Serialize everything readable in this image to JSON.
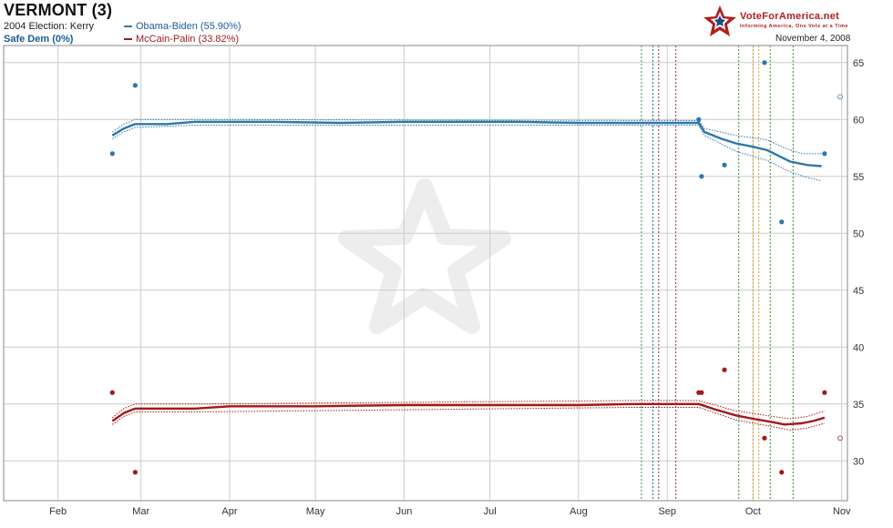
{
  "header": {
    "title": "VERMONT (3)",
    "previous_election": "2004 Election: Kerry",
    "rating": "Safe Dem (0%)",
    "date": "November 4, 2008"
  },
  "brand": {
    "name": "VoteForAmerica.net",
    "tagline": "Informing America, One Vote at a Time",
    "logo_icon": "star-logo-icon"
  },
  "colors": {
    "obama": "#2e77aa",
    "mccain": "#a11a1a",
    "grid": "#cccccc",
    "frame": "#888888"
  },
  "chart_data": {
    "type": "line",
    "x_axis_type": "date",
    "xlim": [
      "2008-01-13",
      "2008-11-03"
    ],
    "ylim": [
      26.5,
      66.5
    ],
    "grid": true,
    "y_ticks": [
      30,
      35,
      40,
      45,
      50,
      55,
      60,
      65
    ],
    "x_ticks": [
      {
        "date": "2008-02-01",
        "label": "Feb"
      },
      {
        "date": "2008-03-01",
        "label": "Mar"
      },
      {
        "date": "2008-04-01",
        "label": "Apr"
      },
      {
        "date": "2008-05-01",
        "label": "May"
      },
      {
        "date": "2008-06-01",
        "label": "Jun"
      },
      {
        "date": "2008-07-01",
        "label": "Jul"
      },
      {
        "date": "2008-08-01",
        "label": "Aug"
      },
      {
        "date": "2008-09-01",
        "label": "Sep"
      },
      {
        "date": "2008-10-01",
        "label": "Oct"
      },
      {
        "date": "2008-11-01",
        "label": "Nov"
      }
    ],
    "series": [
      {
        "name": "Obama-Biden (55.90%)",
        "color": "#2e77aa",
        "trend": [
          [
            "2008-02-20",
            58.6
          ],
          [
            "2008-02-24",
            59.2
          ],
          [
            "2008-02-28",
            59.6
          ],
          [
            "2008-03-10",
            59.6
          ],
          [
            "2008-03-20",
            59.8
          ],
          [
            "2008-04-15",
            59.8
          ],
          [
            "2008-05-10",
            59.7
          ],
          [
            "2008-06-01",
            59.8
          ],
          [
            "2008-07-10",
            59.8
          ],
          [
            "2008-08-01",
            59.7
          ],
          [
            "2008-09-12",
            59.7
          ],
          [
            "2008-09-14",
            58.9
          ],
          [
            "2008-09-20",
            58.3
          ],
          [
            "2008-09-25",
            57.9
          ],
          [
            "2008-10-01",
            57.6
          ],
          [
            "2008-10-06",
            57.3
          ],
          [
            "2008-10-10",
            56.8
          ],
          [
            "2008-10-14",
            56.3
          ],
          [
            "2008-10-20",
            56.0
          ],
          [
            "2008-10-25",
            55.9
          ]
        ],
        "upper": [
          [
            "2008-02-20",
            58.9
          ],
          [
            "2008-02-24",
            59.6
          ],
          [
            "2008-02-28",
            60.0
          ],
          [
            "2008-03-20",
            60.0
          ],
          [
            "2008-09-12",
            59.9
          ],
          [
            "2008-09-14",
            59.2
          ],
          [
            "2008-09-25",
            58.6
          ],
          [
            "2008-10-06",
            58.2
          ],
          [
            "2008-10-12",
            57.5
          ],
          [
            "2008-10-18",
            57.0
          ],
          [
            "2008-10-25",
            57.0
          ]
        ],
        "lower": [
          [
            "2008-02-20",
            58.3
          ],
          [
            "2008-02-24",
            58.9
          ],
          [
            "2008-02-28",
            59.3
          ],
          [
            "2008-03-20",
            59.5
          ],
          [
            "2008-09-12",
            59.5
          ],
          [
            "2008-09-14",
            58.6
          ],
          [
            "2008-09-25",
            57.2
          ],
          [
            "2008-10-06",
            56.4
          ],
          [
            "2008-10-14",
            55.4
          ],
          [
            "2008-10-20",
            54.9
          ],
          [
            "2008-10-25",
            54.6
          ]
        ],
        "polls": [
          [
            "2008-02-20",
            57
          ],
          [
            "2008-02-28",
            63
          ],
          [
            "2008-09-12",
            60
          ],
          [
            "2008-09-13",
            55
          ],
          [
            "2008-09-21",
            56
          ],
          [
            "2008-10-05",
            65
          ],
          [
            "2008-10-11",
            51
          ],
          [
            "2008-10-26",
            57
          ]
        ],
        "end_marker": 62
      },
      {
        "name": "McCain-Palin (33.82%)",
        "color": "#a11a1a",
        "trend": [
          [
            "2008-02-20",
            33.5
          ],
          [
            "2008-02-24",
            34.2
          ],
          [
            "2008-02-28",
            34.6
          ],
          [
            "2008-03-20",
            34.6
          ],
          [
            "2008-04-01",
            34.8
          ],
          [
            "2008-05-01",
            34.8
          ],
          [
            "2008-06-01",
            34.9
          ],
          [
            "2008-07-01",
            34.9
          ],
          [
            "2008-08-01",
            34.9
          ],
          [
            "2008-08-20",
            35.0
          ],
          [
            "2008-09-12",
            35.0
          ],
          [
            "2008-09-18",
            34.5
          ],
          [
            "2008-09-25",
            34.0
          ],
          [
            "2008-10-01",
            33.7
          ],
          [
            "2008-10-08",
            33.4
          ],
          [
            "2008-10-12",
            33.2
          ],
          [
            "2008-10-18",
            33.3
          ],
          [
            "2008-10-22",
            33.5
          ],
          [
            "2008-10-26",
            33.8
          ]
        ],
        "upper": [
          [
            "2008-02-20",
            33.8
          ],
          [
            "2008-02-24",
            34.6
          ],
          [
            "2008-02-28",
            35.0
          ],
          [
            "2008-03-20",
            35.0
          ],
          [
            "2008-08-20",
            35.3
          ],
          [
            "2008-09-12",
            35.3
          ],
          [
            "2008-09-25",
            34.4
          ],
          [
            "2008-10-08",
            33.9
          ],
          [
            "2008-10-14",
            33.7
          ],
          [
            "2008-10-20",
            33.9
          ],
          [
            "2008-10-26",
            34.4
          ]
        ],
        "lower": [
          [
            "2008-02-20",
            33.2
          ],
          [
            "2008-02-24",
            33.9
          ],
          [
            "2008-02-28",
            34.3
          ],
          [
            "2008-03-20",
            34.3
          ],
          [
            "2008-08-20",
            34.7
          ],
          [
            "2008-09-12",
            34.7
          ],
          [
            "2008-09-25",
            33.6
          ],
          [
            "2008-10-08",
            33.0
          ],
          [
            "2008-10-14",
            32.7
          ],
          [
            "2008-10-20",
            32.9
          ],
          [
            "2008-10-26",
            33.3
          ]
        ],
        "polls": [
          [
            "2008-02-20",
            36
          ],
          [
            "2008-02-28",
            29
          ],
          [
            "2008-09-12",
            36
          ],
          [
            "2008-09-13",
            36
          ],
          [
            "2008-09-21",
            38
          ],
          [
            "2008-10-05",
            32
          ],
          [
            "2008-10-11",
            29
          ],
          [
            "2008-10-26",
            36
          ]
        ],
        "end_marker": 32
      }
    ],
    "event_lines": [
      {
        "date": "2008-08-23",
        "color": "#2a8f5a"
      },
      {
        "date": "2008-08-27",
        "color": "#1a6a9a"
      },
      {
        "date": "2008-08-29",
        "color": "#9b1b6b"
      },
      {
        "date": "2008-09-04",
        "color": "#9b1b6b"
      },
      {
        "date": "2008-09-26",
        "color": "#2a8f2a"
      },
      {
        "date": "2008-10-01",
        "color": "#e0a020"
      },
      {
        "date": "2008-10-03",
        "color": "#e0a020"
      },
      {
        "date": "2008-10-07",
        "color": "#2a8f2a"
      },
      {
        "date": "2008-10-15",
        "color": "#2a8f2a"
      }
    ]
  }
}
